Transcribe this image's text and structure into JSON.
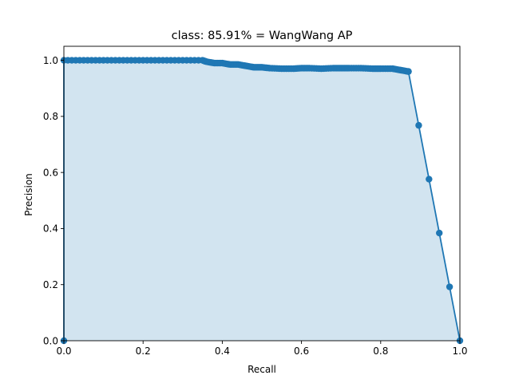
{
  "chart_data": {
    "type": "area",
    "title": "class: 85.91% = WangWang AP",
    "xlabel": "Recall",
    "ylabel": "Precision",
    "xlim": [
      0.0,
      1.0
    ],
    "ylim": [
      0.0,
      1.05
    ],
    "xticks": [
      "0.0",
      "0.2",
      "0.4",
      "0.6",
      "0.8",
      "1.0"
    ],
    "yticks": [
      "0.0",
      "0.2",
      "0.4",
      "0.6",
      "0.8",
      "1.0"
    ],
    "grid": false,
    "legend": "none",
    "colors": {
      "line": "#1f77b4",
      "fill": "#1f77b4",
      "fill_alpha": 0.2
    },
    "series": [
      {
        "x": [
          0.0,
          0.0,
          0.05,
          0.1,
          0.15,
          0.2,
          0.25,
          0.3,
          0.35,
          0.36,
          0.38,
          0.4,
          0.42,
          0.44,
          0.46,
          0.48,
          0.5,
          0.52,
          0.55,
          0.58,
          0.6,
          0.62,
          0.65,
          0.68,
          0.7,
          0.72,
          0.75,
          0.78,
          0.8,
          0.83,
          0.85,
          0.87,
          0.87,
          1.0
        ],
        "y": [
          0.0,
          1.0,
          1.0,
          1.0,
          1.0,
          1.0,
          1.0,
          1.0,
          1.0,
          0.995,
          0.99,
          0.99,
          0.985,
          0.985,
          0.98,
          0.975,
          0.975,
          0.972,
          0.97,
          0.97,
          0.972,
          0.972,
          0.97,
          0.972,
          0.972,
          0.972,
          0.972,
          0.97,
          0.97,
          0.97,
          0.965,
          0.96,
          0.96,
          0.0
        ]
      }
    ]
  }
}
